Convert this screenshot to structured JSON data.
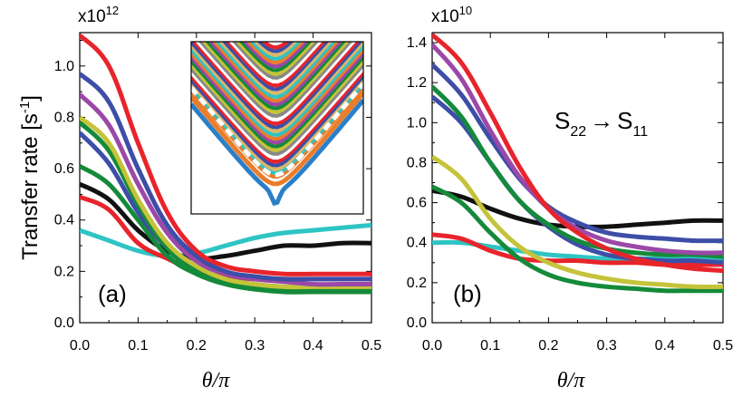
{
  "colors": {
    "red": "#e8242b",
    "blue": "#3d4ea7",
    "purple": "#9b48a8",
    "yellow": "#c5c33a",
    "green": "#148a3a",
    "black": "#111111",
    "cyan": "#2fc4c4",
    "inset_fill": "#d8b86a",
    "inset_white": "#ffffff",
    "inset_orange": "#ea7d2b",
    "inset_blue": "#2a7fc8"
  },
  "y_axis_label": "Transfer rate [s",
  "y_axis_label_sup": "-1",
  "y_axis_label_tail": "]",
  "x_axis_label": "θ/π",
  "annotation": {
    "S1": "S",
    "S1_sub": "22",
    "arrow": "→",
    "S2": "S",
    "S2_sub": "11"
  },
  "chart_data": [
    {
      "type": "line",
      "panel_label": "(a)",
      "multiplier_base": "x10",
      "multiplier_exp": "12",
      "xlabel": "θ/π",
      "ylabel": "Transfer rate [s-1]",
      "xlim": [
        0.0,
        0.5
      ],
      "ylim": [
        0.0,
        1.13
      ],
      "xticks": [
        "0.0",
        "0.1",
        "0.2",
        "0.3",
        "0.4",
        "0.5"
      ],
      "yticks": [
        "0.0",
        "0.2",
        "0.4",
        "0.6",
        "0.8",
        "1.0"
      ],
      "x": [
        0.0,
        0.05,
        0.1,
        0.15,
        0.2,
        0.25,
        0.3,
        0.35,
        0.4,
        0.45,
        0.5
      ],
      "series": [
        {
          "name": "red",
          "color": "#e8242b",
          "values": [
            1.12,
            1.0,
            0.7,
            0.43,
            0.28,
            0.22,
            0.2,
            0.19,
            0.19,
            0.19,
            0.19
          ]
        },
        {
          "name": "blue",
          "color": "#3d4ea7",
          "values": [
            0.97,
            0.86,
            0.6,
            0.38,
            0.26,
            0.2,
            0.18,
            0.17,
            0.17,
            0.17,
            0.17
          ]
        },
        {
          "name": "purple",
          "color": "#9b48a8",
          "values": [
            0.89,
            0.77,
            0.54,
            0.35,
            0.24,
            0.19,
            0.17,
            0.16,
            0.15,
            0.15,
            0.15
          ]
        },
        {
          "name": "yellow",
          "color": "#c5c33a",
          "values": [
            0.8,
            0.7,
            0.48,
            0.31,
            0.22,
            0.17,
            0.15,
            0.14,
            0.14,
            0.14,
            0.14
          ]
        },
        {
          "name": "green-1",
          "color": "#148a3a",
          "values": [
            0.78,
            0.67,
            0.46,
            0.29,
            0.2,
            0.16,
            0.14,
            0.13,
            0.13,
            0.13,
            0.13
          ]
        },
        {
          "name": "blue-2",
          "color": "#3d4ea7",
          "values": [
            0.74,
            0.62,
            0.43,
            0.29,
            0.21,
            0.17,
            0.15,
            0.14,
            0.14,
            0.14,
            0.14
          ]
        },
        {
          "name": "green-2",
          "color": "#148a3a",
          "values": [
            0.61,
            0.54,
            0.4,
            0.26,
            0.19,
            0.15,
            0.13,
            0.12,
            0.12,
            0.12,
            0.12
          ]
        },
        {
          "name": "black",
          "color": "#111111",
          "values": [
            0.54,
            0.48,
            0.36,
            0.28,
            0.25,
            0.26,
            0.28,
            0.3,
            0.3,
            0.31,
            0.31
          ]
        },
        {
          "name": "red-2",
          "color": "#e8242b",
          "values": [
            0.49,
            0.44,
            0.31,
            0.25,
            0.2,
            0.18,
            0.17,
            0.17,
            0.17,
            0.17,
            0.17
          ]
        },
        {
          "name": "cyan",
          "color": "#2fc4c4",
          "values": [
            0.36,
            0.32,
            0.28,
            0.26,
            0.27,
            0.3,
            0.33,
            0.35,
            0.36,
            0.37,
            0.38
          ]
        }
      ]
    },
    {
      "type": "line",
      "panel_label": "(b)",
      "multiplier_base": "x10",
      "multiplier_exp": "10",
      "xlabel": "θ/π",
      "ylabel": "",
      "xlim": [
        0.0,
        0.5
      ],
      "ylim": [
        0.0,
        1.45
      ],
      "xticks": [
        "0.0",
        "0.1",
        "0.2",
        "0.3",
        "0.4",
        "0.5"
      ],
      "yticks": [
        "0.0",
        "0.2",
        "0.4",
        "0.6",
        "0.8",
        "1.0",
        "1.2",
        "1.4"
      ],
      "x": [
        0.0,
        0.05,
        0.1,
        0.15,
        0.2,
        0.25,
        0.3,
        0.35,
        0.4,
        0.45,
        0.5
      ],
      "series": [
        {
          "name": "red",
          "color": "#e8242b",
          "values": [
            1.44,
            1.3,
            1.05,
            0.78,
            0.57,
            0.45,
            0.37,
            0.32,
            0.29,
            0.27,
            0.26
          ]
        },
        {
          "name": "purple",
          "color": "#9b48a8",
          "values": [
            1.39,
            1.22,
            0.96,
            0.73,
            0.57,
            0.47,
            0.41,
            0.38,
            0.36,
            0.35,
            0.35
          ]
        },
        {
          "name": "blue",
          "color": "#3d4ea7",
          "values": [
            1.29,
            1.14,
            0.92,
            0.72,
            0.58,
            0.5,
            0.45,
            0.43,
            0.42,
            0.41,
            0.41
          ]
        },
        {
          "name": "green",
          "color": "#148a3a",
          "values": [
            1.18,
            1.03,
            0.8,
            0.61,
            0.49,
            0.41,
            0.37,
            0.35,
            0.34,
            0.34,
            0.33
          ]
        },
        {
          "name": "blue-2",
          "color": "#3d4ea7",
          "values": [
            1.13,
            1.0,
            0.8,
            0.61,
            0.48,
            0.39,
            0.34,
            0.32,
            0.31,
            0.31,
            0.3
          ]
        },
        {
          "name": "yellow",
          "color": "#c5c33a",
          "values": [
            0.83,
            0.72,
            0.52,
            0.38,
            0.3,
            0.25,
            0.22,
            0.2,
            0.19,
            0.18,
            0.18
          ]
        },
        {
          "name": "green-2",
          "color": "#148a3a",
          "values": [
            0.68,
            0.6,
            0.45,
            0.32,
            0.24,
            0.2,
            0.18,
            0.17,
            0.16,
            0.16,
            0.16
          ]
        },
        {
          "name": "black",
          "color": "#111111",
          "values": [
            0.66,
            0.63,
            0.57,
            0.52,
            0.49,
            0.48,
            0.48,
            0.49,
            0.5,
            0.51,
            0.51
          ]
        },
        {
          "name": "red-2",
          "color": "#e8242b",
          "values": [
            0.44,
            0.42,
            0.36,
            0.32,
            0.31,
            0.31,
            0.3,
            0.3,
            0.29,
            0.29,
            0.29
          ]
        },
        {
          "name": "cyan",
          "color": "#2fc4c4",
          "values": [
            0.4,
            0.4,
            0.38,
            0.36,
            0.34,
            0.33,
            0.32,
            0.32,
            0.32,
            0.32,
            0.32
          ]
        }
      ]
    }
  ]
}
